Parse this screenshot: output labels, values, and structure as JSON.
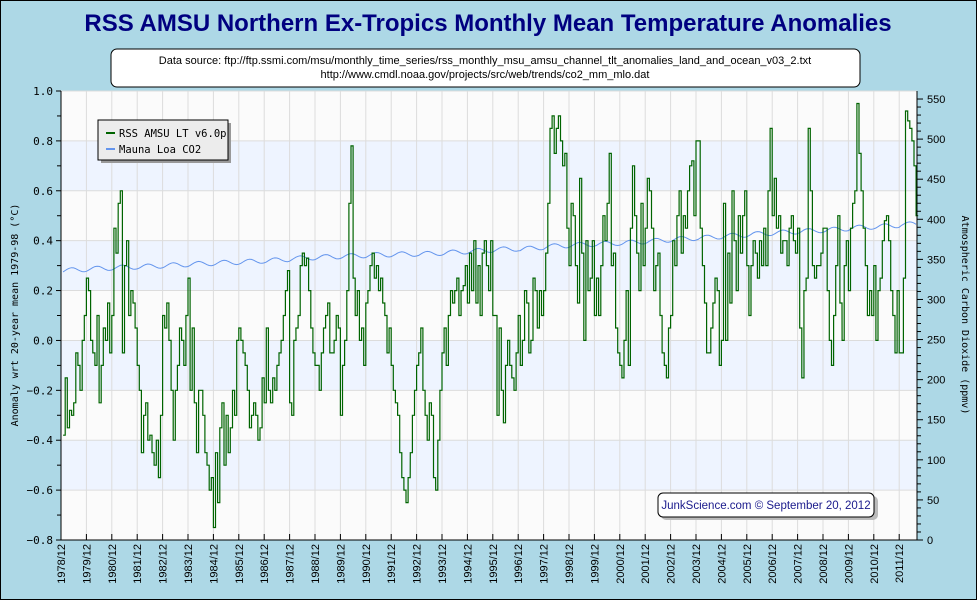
{
  "chart_data": {
    "type": "line",
    "title": "RSS AMSU Northern Ex-Tropics Monthly Mean Temperature Anomalies",
    "source_lines": [
      "Data source: ftp://ftp.ssmi.com/msu/monthly_time_series/rss_monthly_msu_amsu_channel_tlt_anomalies_land_and_ocean_v03_2.txt",
      "http://www.cmdl.noaa.gov/projects/src/web/trends/co2_mm_mlo.dat"
    ],
    "credit": "JunkScience.com © September 20, 2012",
    "ylabel": "Anomaly wrt 20-year mean 1979-98 (°C)",
    "y2label": "Atmospheric Carbon Dioxide (ppmv)",
    "ylim": [
      -0.8,
      1.0
    ],
    "y2lim": [
      0,
      560
    ],
    "y_ticks": [
      "1.0",
      "0.8",
      "0.6",
      "0.4",
      "0.2",
      "0.0",
      "-0.2",
      "-0.4",
      "-0.6",
      "-0.8"
    ],
    "y2_ticks": [
      "550",
      "500",
      "450",
      "400",
      "350",
      "300",
      "250",
      "200",
      "150",
      "100",
      "50",
      "0"
    ],
    "x_ticks": [
      "1978/12",
      "1979/12",
      "1980/12",
      "1981/12",
      "1982/12",
      "1983/12",
      "1984/12",
      "1985/12",
      "1986/12",
      "1987/12",
      "1988/12",
      "1989/12",
      "1990/12",
      "1991/12",
      "1992/12",
      "1993/12",
      "1994/12",
      "1995/12",
      "1996/12",
      "1997/12",
      "1998/12",
      "1999/12",
      "2000/12",
      "2001/12",
      "2002/12",
      "2003/12",
      "2004/12",
      "2005/12",
      "2006/12",
      "2007/12",
      "2008/12",
      "2009/12",
      "2010/12",
      "2011/12"
    ],
    "x_start": "1979/01",
    "x_end": "2012/08",
    "grid": true,
    "legend_placement": "top-left",
    "colors": {
      "rss": "#006400",
      "co2": "#6495ed",
      "background": "#add8e6",
      "title": "#000080",
      "band": "#eef4ff"
    },
    "series": [
      {
        "name": "RSS AMSU LT v6.0p",
        "axis": "left",
        "frequency": "monthly",
        "values": [
          -0.38,
          -0.15,
          -0.35,
          -0.28,
          -0.3,
          -0.25,
          -0.05,
          -0.1,
          -0.2,
          0.0,
          0.1,
          0.25,
          0.2,
          0.0,
          -0.05,
          -0.1,
          0.1,
          -0.25,
          -0.1,
          0.05,
          0.0,
          0.15,
          -0.05,
          0.1,
          0.45,
          0.35,
          0.55,
          0.6,
          -0.05,
          0.3,
          0.4,
          0.1,
          0.2,
          0.15,
          0.05,
          -0.1,
          -0.2,
          -0.45,
          -0.3,
          -0.25,
          -0.4,
          -0.38,
          -0.45,
          -0.5,
          -0.4,
          -0.55,
          -0.3,
          0.1,
          0.05,
          0.15,
          0.0,
          -0.2,
          -0.4,
          -0.2,
          -0.1,
          0.05,
          0.0,
          -0.1,
          0.1,
          0.25,
          -0.2,
          0.05,
          -0.25,
          -0.45,
          -0.2,
          -0.2,
          -0.3,
          -0.45,
          -0.5,
          -0.6,
          -0.55,
          -0.75,
          -0.45,
          -0.65,
          -0.35,
          -0.25,
          -0.5,
          -0.3,
          -0.45,
          -0.35,
          -0.2,
          -0.3,
          0.0,
          0.05,
          0.0,
          -0.05,
          -0.1,
          -0.2,
          -0.35,
          -0.3,
          -0.25,
          -0.3,
          -0.4,
          -0.35,
          -0.15,
          -0.25,
          0.05,
          -0.2,
          -0.25,
          -0.15,
          -0.2,
          -0.1,
          -0.05,
          0.0,
          0.1,
          0.2,
          0.28,
          -0.25,
          -0.3,
          0.0,
          0.05,
          0.1,
          0.3,
          0.35,
          0.3,
          0.33,
          0.2,
          0.05,
          -0.05,
          -0.1,
          -0.1,
          -0.2,
          -0.05,
          0.05,
          0.1,
          0.15,
          -0.05,
          -0.05,
          0.0,
          0.1,
          0.05,
          -0.3,
          -0.1,
          0.0,
          0.2,
          0.55,
          0.78,
          0.25,
          0.1,
          0.2,
          0.0,
          0.05,
          -0.1,
          0.15,
          0.2,
          0.3,
          0.35,
          0.25,
          0.3,
          0.2,
          0.25,
          0.15,
          0.1,
          -0.05,
          0.05,
          -0.1,
          -0.2,
          -0.25,
          -0.3,
          -0.45,
          -0.55,
          -0.6,
          -0.65,
          -0.55,
          -0.45,
          -0.3,
          -0.2,
          -0.1,
          -0.05,
          0.05,
          -0.2,
          -0.3,
          -0.4,
          -0.25,
          -0.3,
          -0.55,
          -0.6,
          -0.4,
          -0.2,
          -0.05,
          0.05,
          -0.1,
          0.1,
          0.2,
          0.15,
          0.2,
          0.25,
          0.1,
          0.2,
          0.22,
          0.3,
          0.15,
          0.35,
          0.2,
          0.4,
          0.15,
          0.3,
          0.1,
          0.35,
          0.4,
          0.3,
          0.2,
          0.4,
          0.1,
          0.1,
          -0.3,
          0.05,
          -0.2,
          -0.33,
          -0.1,
          0.0,
          -0.1,
          -0.15,
          -0.2,
          -0.05,
          0.1,
          -0.1,
          0.0,
          0.2,
          0.15,
          -0.05,
          0.0,
          0.25,
          0.2,
          0.05,
          0.2,
          0.1,
          0.2,
          0.35,
          0.55,
          0.85,
          0.9,
          0.75,
          0.85,
          0.9,
          0.8,
          0.7,
          0.75,
          0.45,
          0.3,
          0.55,
          0.5,
          0.3,
          0.15,
          0.65,
          0.35,
          0.0,
          0.4,
          0.2,
          0.25,
          0.4,
          0.1,
          0.25,
          0.1,
          0.3,
          0.5,
          0.4,
          0.55,
          0.75,
          0.3,
          0.35,
          0.05,
          -0.05,
          -0.1,
          -0.15,
          0.0,
          0.2,
          -0.1,
          0.45,
          0.7,
          0.5,
          0.35,
          0.2,
          0.55,
          0.3,
          0.45,
          0.65,
          0.6,
          0.45,
          0.2,
          0.3,
          0.35,
          0.1,
          -0.05,
          -0.1,
          -0.15,
          0.05,
          0.1,
          0.4,
          0.3,
          0.5,
          0.6,
          0.35,
          0.5,
          0.45,
          0.6,
          0.7,
          0.72,
          0.5,
          0.8,
          0.8,
          0.45,
          0.3,
          0.15,
          -0.05,
          -0.05,
          0.05,
          0.15,
          0.25,
          0.2,
          -0.1,
          0.0,
          0.55,
          0.0,
          0.35,
          0.15,
          0.6,
          0.4,
          0.2,
          0.5,
          0.35,
          0.5,
          0.6,
          0.3,
          0.1,
          0.3,
          0.4,
          0.35,
          0.25,
          0.4,
          0.3,
          0.45,
          0.3,
          0.6,
          0.85,
          0.5,
          0.65,
          0.45,
          0.5,
          0.35,
          0.4,
          0.4,
          0.3,
          0.45,
          0.5,
          0.4,
          0.35,
          0.45,
          0.05,
          -0.15,
          0.2,
          0.25,
          0.85,
          0.6,
          0.3,
          0.25,
          0.3,
          0.3,
          0.35,
          0.45,
          0.45,
          0.2,
          0.0,
          -0.1,
          0.1,
          0.3,
          0.5,
          0.15,
          0.0,
          0.3,
          0.4,
          0.2,
          0.45,
          0.55,
          0.6,
          0.95,
          0.75,
          0.6,
          0.45,
          0.3,
          0.1,
          0.2,
          0.1,
          0.3,
          0.0,
          0.2,
          0.25,
          0.4,
          0.48,
          0.5,
          0.4,
          0.2,
          0.1,
          -0.05,
          0.2,
          -0.05,
          -0.05,
          0.25,
          0.92,
          0.88,
          0.85,
          0.8,
          0.7,
          0.5
        ]
      },
      {
        "name": "Mauna Loa CO2",
        "axis": "right",
        "frequency": "annual mean with seasonal cycle",
        "years": [
          1979,
          1980,
          1981,
          1982,
          1983,
          1984,
          1985,
          1986,
          1987,
          1988,
          1989,
          1990,
          1991,
          1992,
          1993,
          1994,
          1995,
          1996,
          1997,
          1998,
          1999,
          2000,
          2001,
          2002,
          2003,
          2004,
          2005,
          2006,
          2007,
          2008,
          2009,
          2010,
          2011,
          2012
        ],
        "annual_mean": [
          336.8,
          338.7,
          340.1,
          341.4,
          343.0,
          344.6,
          346.0,
          347.4,
          349.2,
          351.6,
          353.1,
          354.4,
          355.7,
          356.5,
          357.2,
          358.9,
          360.9,
          362.7,
          363.8,
          366.7,
          368.4,
          369.7,
          371.3,
          373.5,
          375.8,
          377.5,
          379.8,
          381.9,
          383.8,
          385.6,
          387.4,
          389.9,
          391.6,
          393.8
        ],
        "seasonal_amplitude_ppmv": 3
      }
    ]
  }
}
